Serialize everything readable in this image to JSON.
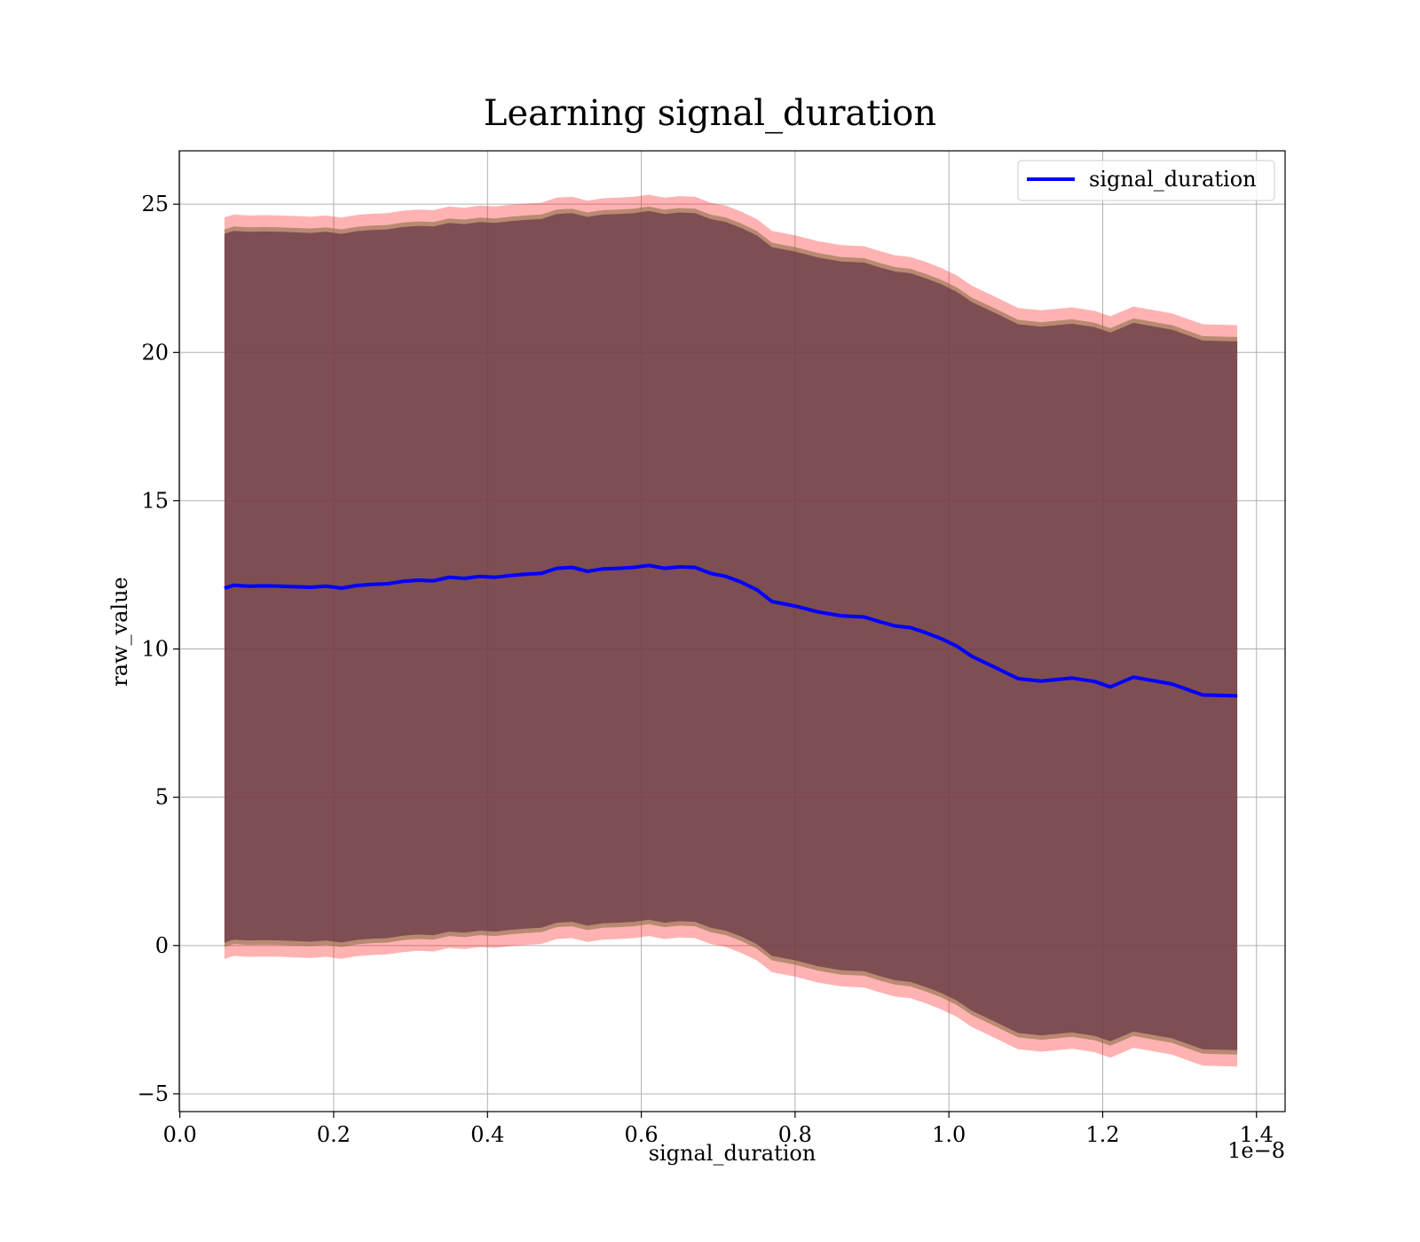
{
  "chart_data": {
    "type": "line",
    "title": "Learning signal_duration",
    "xlabel": "signal_duration",
    "ylabel": "raw_value",
    "x_offset_label": "1e−8",
    "xlim": [
      -0.0008,
      1.4372
    ],
    "ylim": [
      -5.6,
      26.8
    ],
    "x_ticks": [
      0.0,
      0.2,
      0.4,
      0.6,
      0.8,
      1.0,
      1.2,
      1.4
    ],
    "x_tick_labels": [
      "0.0",
      "0.2",
      "0.4",
      "0.6",
      "0.8",
      "1.0",
      "1.2",
      "1.4"
    ],
    "y_ticks": [
      -5,
      0,
      5,
      10,
      15,
      20,
      25
    ],
    "y_tick_labels": [
      "−5",
      "0",
      "5",
      "10",
      "15",
      "20",
      "25"
    ],
    "grid": true,
    "legend_position": "upper right",
    "colors": {
      "line": "#0000ff",
      "outer_band": "#ff0000",
      "inner_band": "#8b6f47",
      "core_band": "#6b3a4a",
      "grid": "#b0b0b0"
    },
    "x": [
      0.058,
      0.07,
      0.09,
      0.11,
      0.13,
      0.15,
      0.17,
      0.19,
      0.21,
      0.23,
      0.25,
      0.27,
      0.29,
      0.31,
      0.33,
      0.35,
      0.37,
      0.39,
      0.41,
      0.43,
      0.45,
      0.47,
      0.49,
      0.51,
      0.53,
      0.55,
      0.57,
      0.59,
      0.61,
      0.63,
      0.65,
      0.67,
      0.69,
      0.71,
      0.73,
      0.75,
      0.77,
      0.8,
      0.83,
      0.86,
      0.89,
      0.91,
      0.93,
      0.95,
      0.97,
      0.99,
      1.01,
      1.03,
      1.06,
      1.09,
      1.12,
      1.16,
      1.19,
      1.21,
      1.24,
      1.29,
      1.33,
      1.375
    ],
    "series": [
      {
        "name": "signal_duration",
        "values": [
          12.05,
          12.15,
          12.12,
          12.13,
          12.12,
          12.1,
          12.08,
          12.12,
          12.05,
          12.14,
          12.18,
          12.2,
          12.28,
          12.32,
          12.3,
          12.42,
          12.38,
          12.45,
          12.42,
          12.48,
          12.52,
          12.55,
          12.72,
          12.75,
          12.62,
          12.7,
          12.72,
          12.75,
          12.82,
          12.72,
          12.77,
          12.75,
          12.55,
          12.45,
          12.25,
          12.0,
          11.6,
          11.45,
          11.25,
          11.12,
          11.08,
          10.92,
          10.78,
          10.72,
          10.55,
          10.35,
          10.1,
          9.75,
          9.38,
          9.0,
          8.92,
          9.02,
          8.9,
          8.72,
          9.05,
          8.82,
          8.45,
          8.42
        ]
      }
    ],
    "bands": [
      {
        "upper_offset": 12.5,
        "lower_offset": -12.5
      },
      {
        "upper_offset": 12.1,
        "lower_offset": -12.1
      },
      {
        "upper_offset": 11.95,
        "lower_offset": -11.95
      }
    ]
  }
}
